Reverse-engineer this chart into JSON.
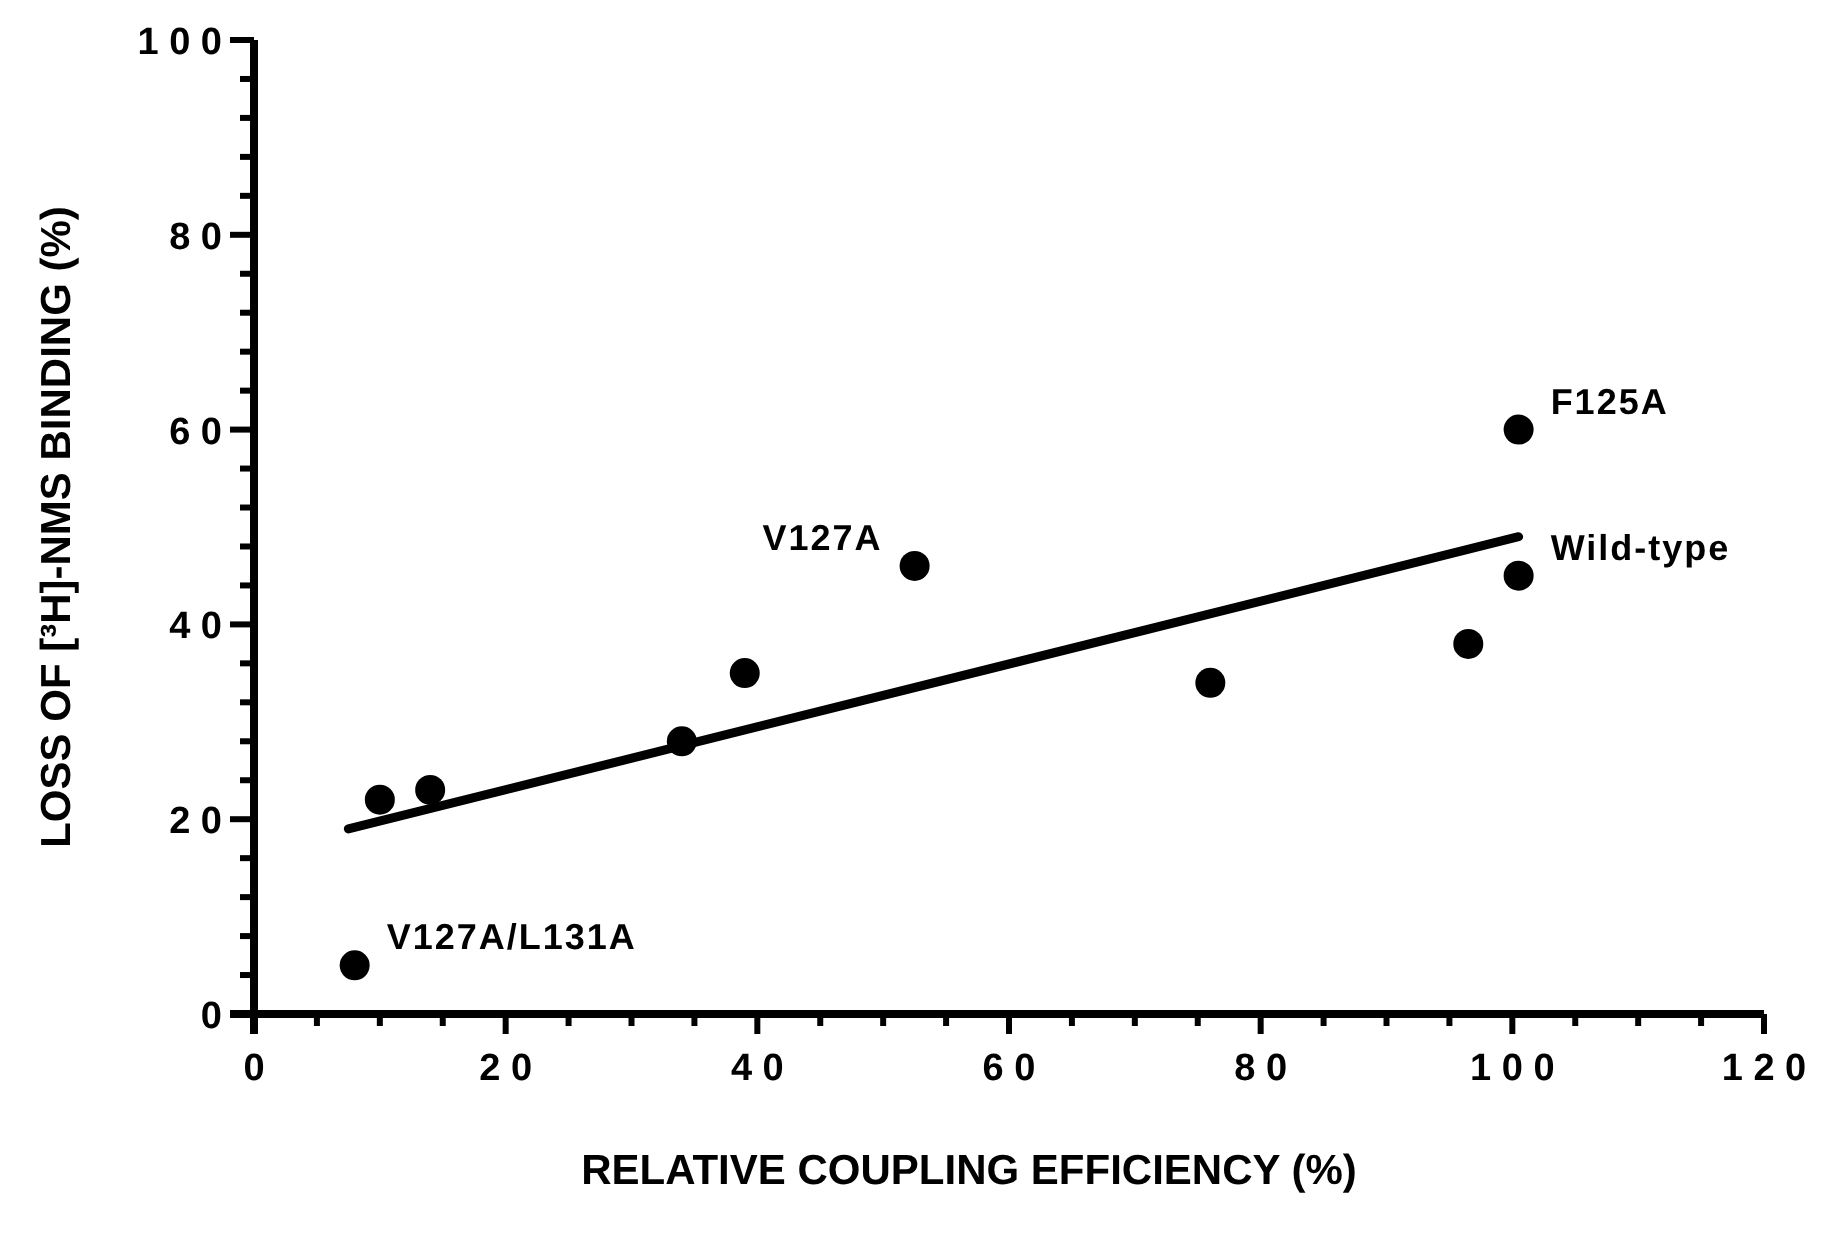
{
  "chart_data": {
    "type": "scatter",
    "xlabel": "RELATIVE COUPLING EFFICIENCY (%)",
    "ylabel": "LOSS OF [³H]-NMS BINDING (%)",
    "xlim": [
      0,
      120
    ],
    "ylim": [
      0,
      100
    ],
    "xticks": [
      0,
      {
        "value": 5,
        "label": null
      },
      {
        "value": 10,
        "label": null
      },
      {
        "value": 15,
        "label": null
      },
      20,
      {
        "value": 25,
        "label": null
      },
      {
        "value": 30,
        "label": null
      },
      {
        "value": 35,
        "label": null
      },
      40,
      {
        "value": 45,
        "label": null
      },
      {
        "value": 50,
        "label": null
      },
      {
        "value": 55,
        "label": null
      },
      60,
      {
        "value": 65,
        "label": null
      },
      {
        "value": 70,
        "label": null
      },
      {
        "value": 75,
        "label": null
      },
      80,
      {
        "value": 85,
        "label": null
      },
      {
        "value": 90,
        "label": null
      },
      {
        "value": 95,
        "label": null
      },
      100,
      {
        "value": 105,
        "label": null
      },
      {
        "value": 110,
        "label": null
      },
      {
        "value": 115,
        "label": null
      },
      120
    ],
    "yticks": [
      0,
      {
        "value": 4,
        "label": null
      },
      {
        "value": 8,
        "label": null
      },
      {
        "value": 12,
        "label": null
      },
      {
        "value": 16,
        "label": null
      },
      20,
      {
        "value": 24,
        "label": null
      },
      {
        "value": 28,
        "label": null
      },
      {
        "value": 32,
        "label": null
      },
      {
        "value": 36,
        "label": null
      },
      40,
      {
        "value": 44,
        "label": null
      },
      {
        "value": 48,
        "label": null
      },
      {
        "value": 52,
        "label": null
      },
      {
        "value": 56,
        "label": null
      },
      60,
      {
        "value": 64,
        "label": null
      },
      {
        "value": 68,
        "label": null
      },
      {
        "value": 72,
        "label": null
      },
      {
        "value": 76,
        "label": null
      },
      80,
      {
        "value": 84,
        "label": null
      },
      {
        "value": 88,
        "label": null
      },
      {
        "value": 92,
        "label": null
      },
      {
        "value": 96,
        "label": null
      },
      100
    ],
    "grid": false,
    "series": [
      {
        "color": "#000000",
        "marker": "circle",
        "x": [
          8,
          10,
          14,
          34,
          39,
          52.5,
          76,
          96.5,
          100.5,
          100.5
        ],
        "values": [
          5,
          22,
          23,
          28,
          35,
          46,
          34,
          38,
          60,
          45
        ]
      },
      {
        "type": "line",
        "color": "#000000",
        "marker": "none",
        "line_style": "solid",
        "x": [
          7.5,
          100.5
        ],
        "values": [
          19,
          49
        ]
      }
    ],
    "annotations": [
      {
        "text": "V127A/L131A",
        "x": 8,
        "y": 5
      },
      {
        "text": "V127A",
        "x": 52.5,
        "y": 46
      },
      {
        "text": "F125A",
        "x": 100.5,
        "y": 60
      },
      {
        "text": "Wild-type",
        "x": 100.5,
        "y": 45
      }
    ]
  }
}
